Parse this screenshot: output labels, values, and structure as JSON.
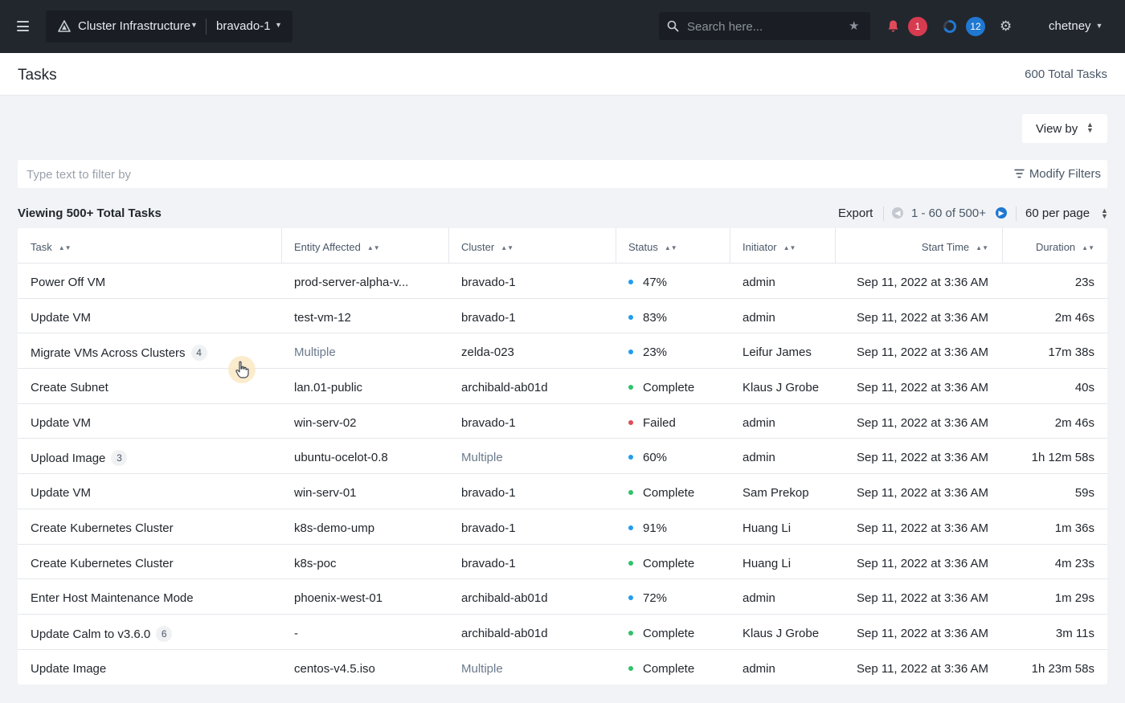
{
  "topbar": {
    "app_name": "Cluster Infrastructure",
    "cluster": "bravado-1",
    "search_placeholder": "Search here...",
    "alerts_count": "1",
    "tasks_count": "12",
    "user": "chetney"
  },
  "page": {
    "title": "Tasks",
    "total": "600 Total Tasks",
    "view_by": "View by"
  },
  "filter": {
    "placeholder": "Type text to filter by",
    "modify_label": "Modify Filters"
  },
  "listing": {
    "viewing": "Viewing 500+ Total Tasks",
    "export": "Export",
    "range": "1 - 60 of 500+",
    "per_page": "60 per page"
  },
  "table": {
    "columns": [
      "Task",
      "Entity Affected",
      "Cluster",
      "Status",
      "Initiator",
      "Start Time",
      "Duration"
    ],
    "rows": [
      {
        "task": "Power Off VM",
        "count": "",
        "entity": "prod-server-alpha-v...",
        "entity_muted": false,
        "cluster": "bravado-1",
        "cluster_muted": false,
        "status": "47%",
        "status_color": "blue",
        "initiator": "admin",
        "start": "Sep 11, 2022 at 3:36 AM",
        "duration": "23s"
      },
      {
        "task": "Update VM",
        "count": "",
        "entity": "test-vm-12",
        "entity_muted": false,
        "cluster": "bravado-1",
        "cluster_muted": false,
        "status": "83%",
        "status_color": "blue",
        "initiator": "admin",
        "start": "Sep 11, 2022 at 3:36 AM",
        "duration": "2m 46s"
      },
      {
        "task": "Migrate VMs Across Clusters",
        "count": "4",
        "entity": "Multiple",
        "entity_muted": true,
        "cluster": "zelda-023",
        "cluster_muted": false,
        "status": "23%",
        "status_color": "blue",
        "initiator": "Leifur James",
        "start": "Sep 11, 2022 at 3:36 AM",
        "duration": "17m 38s"
      },
      {
        "task": "Create Subnet",
        "count": "",
        "entity": "lan.01-public",
        "entity_muted": false,
        "cluster": "archibald-ab01d",
        "cluster_muted": false,
        "status": "Complete",
        "status_color": "green",
        "initiator": "Klaus J Grobe",
        "start": "Sep 11, 2022 at 3:36 AM",
        "duration": "40s"
      },
      {
        "task": "Update VM",
        "count": "",
        "entity": "win-serv-02",
        "entity_muted": false,
        "cluster": "bravado-1",
        "cluster_muted": false,
        "status": "Failed",
        "status_color": "red",
        "initiator": "admin",
        "start": "Sep 11, 2022 at 3:36 AM",
        "duration": "2m 46s"
      },
      {
        "task": "Upload Image",
        "count": "3",
        "entity": "ubuntu-ocelot-0.8",
        "entity_muted": false,
        "cluster": "Multiple",
        "cluster_muted": true,
        "status": "60%",
        "status_color": "blue",
        "initiator": "admin",
        "start": "Sep 11, 2022 at 3:36 AM",
        "duration": "1h 12m 58s"
      },
      {
        "task": "Update VM",
        "count": "",
        "entity": "win-serv-01",
        "entity_muted": false,
        "cluster": "bravado-1",
        "cluster_muted": false,
        "status": "Complete",
        "status_color": "green",
        "initiator": "Sam Prekop",
        "start": "Sep 11, 2022 at 3:36 AM",
        "duration": "59s"
      },
      {
        "task": "Create Kubernetes Cluster",
        "count": "",
        "entity": "k8s-demo-ump",
        "entity_muted": false,
        "cluster": "bravado-1",
        "cluster_muted": false,
        "status": "91%",
        "status_color": "blue",
        "initiator": "Huang Li",
        "start": "Sep 11, 2022 at 3:36 AM",
        "duration": "1m 36s"
      },
      {
        "task": "Create Kubernetes Cluster",
        "count": "",
        "entity": "k8s-poc",
        "entity_muted": false,
        "cluster": "bravado-1",
        "cluster_muted": false,
        "status": "Complete",
        "status_color": "green",
        "initiator": "Huang Li",
        "start": "Sep 11, 2022 at 3:36 AM",
        "duration": "4m 23s"
      },
      {
        "task": "Enter Host Maintenance Mode",
        "count": "",
        "entity": "phoenix-west-01",
        "entity_muted": false,
        "cluster": "archibald-ab01d",
        "cluster_muted": false,
        "status": "72%",
        "status_color": "blue",
        "initiator": "admin",
        "start": "Sep 11, 2022 at 3:36 AM",
        "duration": "1m 29s"
      },
      {
        "task": "Update Calm to v3.6.0",
        "count": "6",
        "entity": "-",
        "entity_muted": false,
        "cluster": "archibald-ab01d",
        "cluster_muted": false,
        "status": "Complete",
        "status_color": "green",
        "initiator": "Klaus J Grobe",
        "start": "Sep 11, 2022 at 3:36 AM",
        "duration": "3m 11s"
      },
      {
        "task": "Update Image",
        "count": "",
        "entity": "centos-v4.5.iso",
        "entity_muted": false,
        "cluster": "Multiple",
        "cluster_muted": true,
        "status": "Complete",
        "status_color": "green",
        "initiator": "admin",
        "start": "Sep 11, 2022 at 3:36 AM",
        "duration": "1h 23m 58s"
      }
    ]
  },
  "icons": {
    "menu": "hamburger-icon",
    "logo": "cloud-triangle-logo-icon",
    "search": "search-icon",
    "favorite": "star-icon",
    "alerts": "bell-icon",
    "tasks": "spinner-icon",
    "settings": "gear-icon",
    "filter": "filter-icon",
    "prev": "chevron-left-icon",
    "next": "chevron-right-icon"
  },
  "colors": {
    "topbar": "#22272e",
    "accent_blue": "#1f78d1",
    "alert_red": "#d63b4f",
    "status_blue": "#1f9cf0",
    "status_green": "#2fc26b",
    "status_red": "#e04b5a"
  }
}
